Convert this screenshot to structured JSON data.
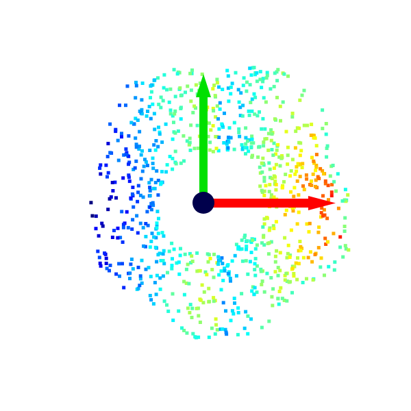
{
  "background": "#ffffff",
  "scene": {
    "type": "3d-point-cloud-view",
    "colormap": "jet",
    "colormap_stops": [
      "#00007f",
      "#0000ff",
      "#0080ff",
      "#00ffff",
      "#80ff80",
      "#ffff00",
      "#ff8000",
      "#ff0000"
    ],
    "origin_marker": {
      "icon": "origin-sphere-icon",
      "color": "#00004c"
    },
    "axes": [
      {
        "id": "x",
        "icon": "x-axis-arrow-icon",
        "color": "#ff0000",
        "direction": "right"
      },
      {
        "id": "y",
        "icon": "y-axis-arrow-icon",
        "color": "#00e000",
        "direction": "up"
      }
    ],
    "point_cloud": {
      "shape": "ring / pentagon-like surface",
      "approx_point_count": 900,
      "marker": "square"
    }
  }
}
